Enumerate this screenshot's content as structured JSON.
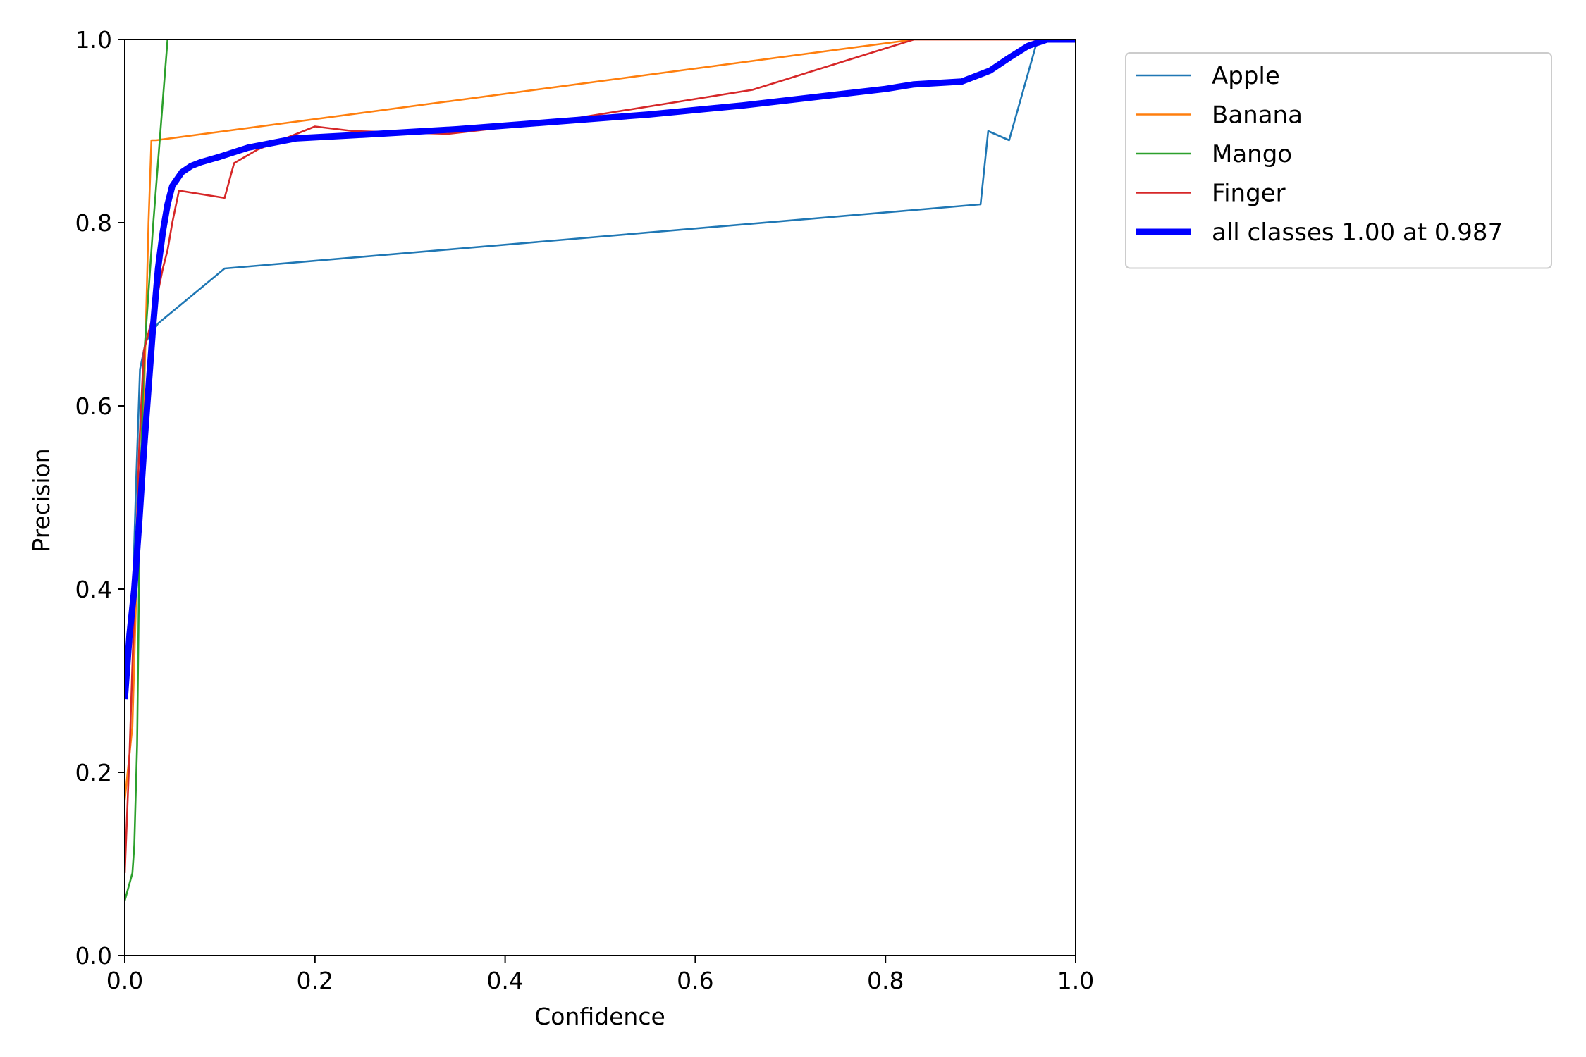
{
  "chart_data": {
    "type": "line",
    "xlabel": "Confidence",
    "ylabel": "Precision",
    "xlim": [
      0,
      1
    ],
    "ylim": [
      0,
      1
    ],
    "x_ticks": [
      "0.0",
      "0.2",
      "0.4",
      "0.6",
      "0.8",
      "1.0"
    ],
    "y_ticks": [
      "0.0",
      "0.2",
      "0.4",
      "0.6",
      "0.8",
      "1.0"
    ],
    "legend_position": "outside-top-right",
    "grid": false,
    "series": [
      {
        "name": "Apple",
        "color": "#1f77b4",
        "points": [
          [
            0.0,
            0.28
          ],
          [
            0.008,
            0.38
          ],
          [
            0.012,
            0.52
          ],
          [
            0.016,
            0.64
          ],
          [
            0.022,
            0.67
          ],
          [
            0.035,
            0.69
          ],
          [
            0.105,
            0.75
          ],
          [
            0.9,
            0.82
          ],
          [
            0.908,
            0.9
          ],
          [
            0.93,
            0.89
          ],
          [
            0.96,
            1.0
          ],
          [
            1.0,
            1.0
          ]
        ]
      },
      {
        "name": "Banana",
        "color": "#ff7f0e",
        "points": [
          [
            0.0,
            0.17
          ],
          [
            0.008,
            0.25
          ],
          [
            0.015,
            0.5
          ],
          [
            0.02,
            0.6
          ],
          [
            0.025,
            0.8
          ],
          [
            0.028,
            0.89
          ],
          [
            0.033,
            0.89
          ],
          [
            0.83,
            1.0
          ],
          [
            1.0,
            1.0
          ]
        ]
      },
      {
        "name": "Mango",
        "color": "#2ca02c",
        "points": [
          [
            0.0,
            0.06
          ],
          [
            0.008,
            0.09
          ],
          [
            0.01,
            0.12
          ],
          [
            0.013,
            0.23
          ],
          [
            0.016,
            0.5
          ],
          [
            0.02,
            0.65
          ],
          [
            0.03,
            0.8
          ],
          [
            0.045,
            1.0
          ]
        ]
      },
      {
        "name": "Finger",
        "color": "#d62728",
        "points": [
          [
            0.0,
            0.09
          ],
          [
            0.005,
            0.22
          ],
          [
            0.01,
            0.38
          ],
          [
            0.015,
            0.55
          ],
          [
            0.02,
            0.66
          ],
          [
            0.03,
            0.7
          ],
          [
            0.04,
            0.75
          ],
          [
            0.045,
            0.77
          ],
          [
            0.05,
            0.8
          ],
          [
            0.057,
            0.835
          ],
          [
            0.105,
            0.827
          ],
          [
            0.115,
            0.865
          ],
          [
            0.14,
            0.88
          ],
          [
            0.2,
            0.905
          ],
          [
            0.24,
            0.9
          ],
          [
            0.34,
            0.897
          ],
          [
            0.45,
            0.91
          ],
          [
            0.66,
            0.945
          ],
          [
            0.83,
            1.0
          ],
          [
            1.0,
            1.0
          ]
        ]
      },
      {
        "name": "all classes 1.00 at 0.987",
        "color": "#0000ff",
        "thick": true,
        "points": [
          [
            0.0,
            0.28
          ],
          [
            0.005,
            0.35
          ],
          [
            0.01,
            0.4
          ],
          [
            0.015,
            0.47
          ],
          [
            0.02,
            0.55
          ],
          [
            0.025,
            0.62
          ],
          [
            0.03,
            0.69
          ],
          [
            0.035,
            0.75
          ],
          [
            0.04,
            0.79
          ],
          [
            0.045,
            0.82
          ],
          [
            0.05,
            0.84
          ],
          [
            0.06,
            0.855
          ],
          [
            0.07,
            0.862
          ],
          [
            0.08,
            0.866
          ],
          [
            0.1,
            0.872
          ],
          [
            0.13,
            0.882
          ],
          [
            0.18,
            0.892
          ],
          [
            0.25,
            0.896
          ],
          [
            0.35,
            0.902
          ],
          [
            0.45,
            0.91
          ],
          [
            0.55,
            0.918
          ],
          [
            0.65,
            0.928
          ],
          [
            0.75,
            0.94
          ],
          [
            0.8,
            0.946
          ],
          [
            0.83,
            0.951
          ],
          [
            0.88,
            0.954
          ],
          [
            0.91,
            0.966
          ],
          [
            0.93,
            0.98
          ],
          [
            0.95,
            0.993
          ],
          [
            0.97,
            1.0
          ],
          [
            1.0,
            1.0
          ]
        ]
      }
    ]
  }
}
